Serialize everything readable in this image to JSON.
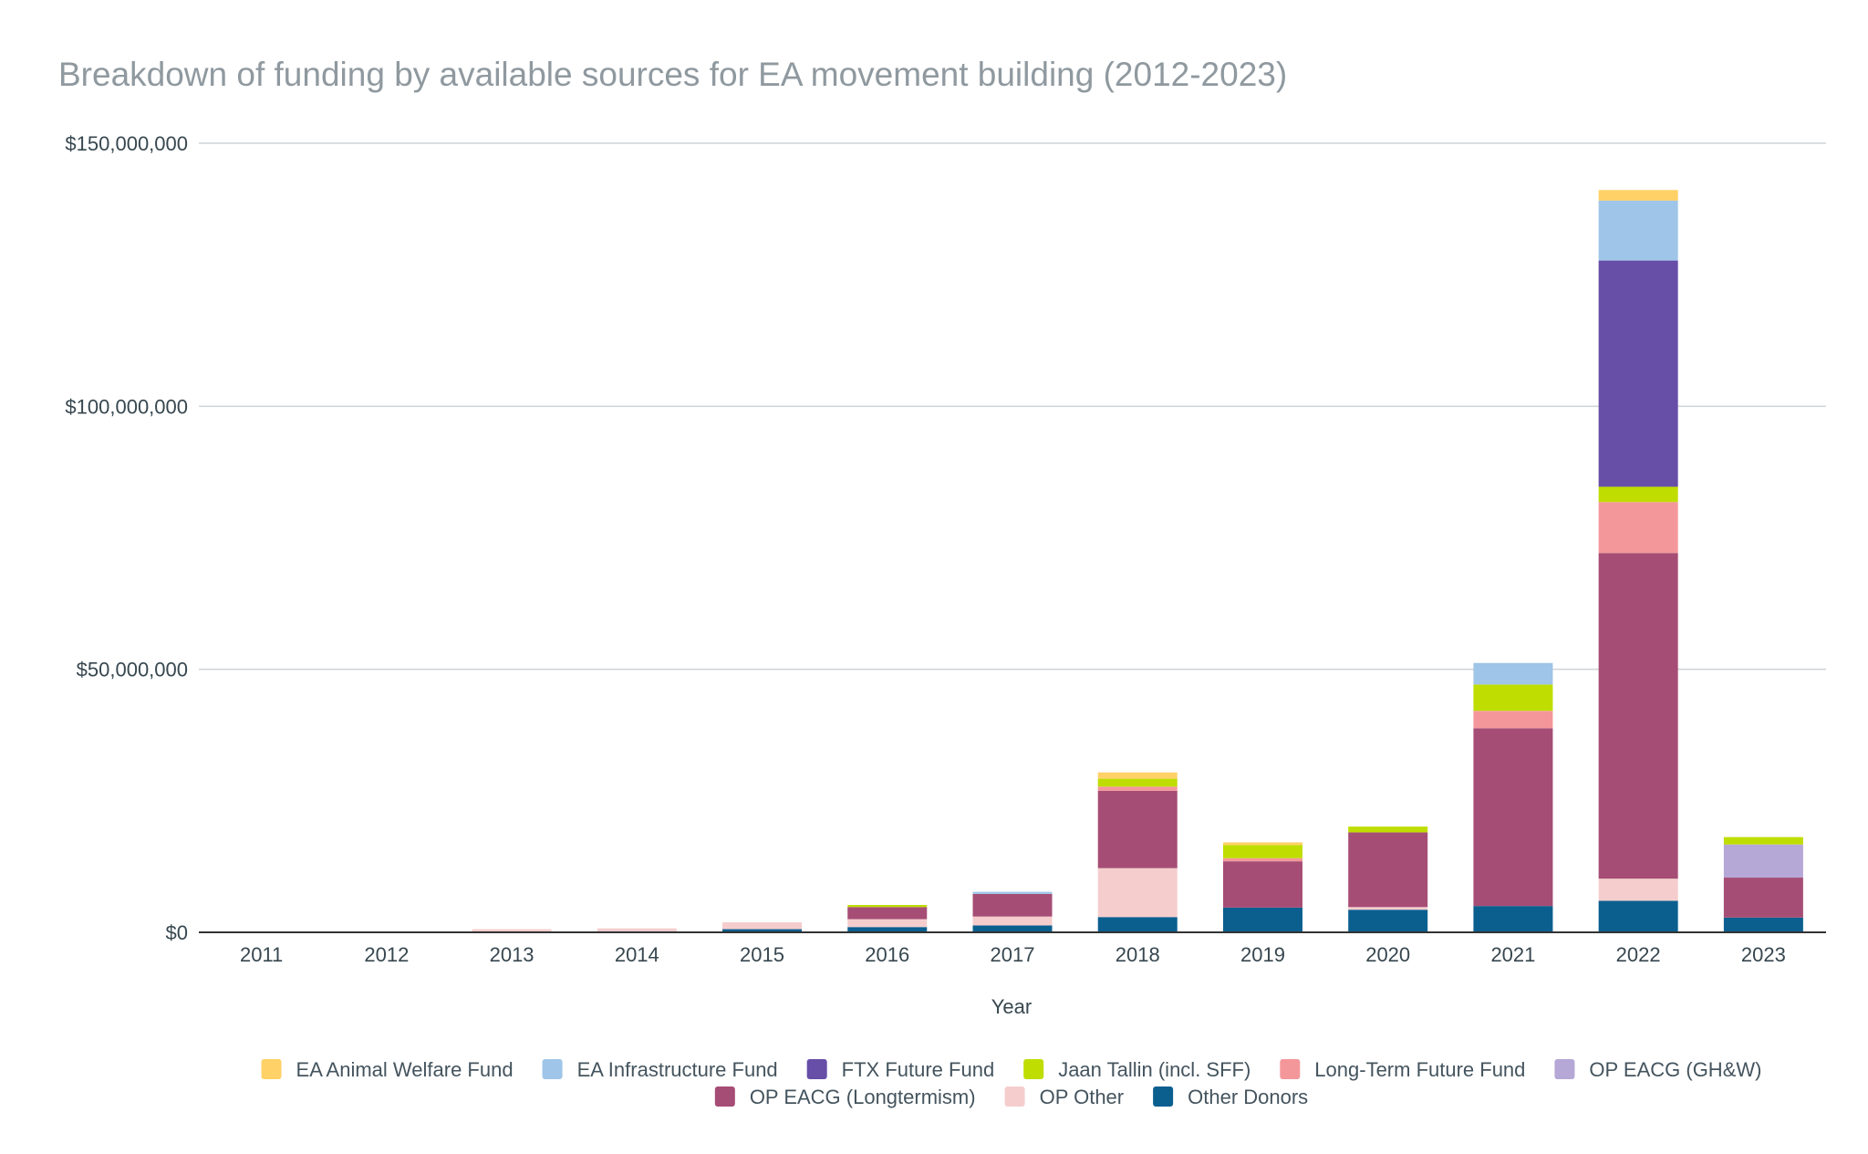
{
  "chart_data": {
    "type": "bar",
    "stacked": true,
    "title": "Breakdown of funding by available sources for EA movement building (2012-2023)",
    "xlabel": "Year",
    "ylabel": "",
    "ylim": [
      0,
      150000000
    ],
    "yticks": [
      0,
      50000000,
      100000000,
      150000000
    ],
    "ytick_labels": [
      "$0",
      "$50,000,000",
      "$100,000,000",
      "$150,000,000"
    ],
    "grid": true,
    "legend_position": "bottom",
    "categories": [
      "2011",
      "2012",
      "2013",
      "2014",
      "2015",
      "2016",
      "2017",
      "2018",
      "2019",
      "2020",
      "2021",
      "2022",
      "2023"
    ],
    "series": [
      {
        "name": "Other Donors",
        "color": "#0b5f8f",
        "values": [
          0,
          0,
          150000,
          200000,
          600000,
          1000000,
          1300000,
          2900000,
          4700000,
          4300000,
          5000000,
          6000000,
          2800000
        ]
      },
      {
        "name": "OP Other",
        "color": "#f5cdcd",
        "values": [
          0,
          0,
          450000,
          550000,
          1300000,
          1500000,
          1700000,
          9300000,
          0,
          500000,
          0,
          4200000,
          0
        ]
      },
      {
        "name": "OP EACG (Longtermism)",
        "color": "#a64d75",
        "values": [
          0,
          0,
          0,
          0,
          0,
          2300000,
          4300000,
          14700000,
          8800000,
          14200000,
          33800000,
          61900000,
          7600000
        ]
      },
      {
        "name": "OP EACG (GH&W)",
        "color": "#b5a7d6",
        "values": [
          0,
          0,
          0,
          0,
          0,
          0,
          0,
          0,
          0,
          0,
          0,
          0,
          6300000
        ]
      },
      {
        "name": "Long-Term Future Fund",
        "color": "#f4979a",
        "values": [
          0,
          0,
          0,
          0,
          0,
          0,
          0,
          800000,
          600000,
          0,
          3300000,
          9700000,
          0
        ]
      },
      {
        "name": "Jaan Tallin (incl. SFF)",
        "color": "#bfdd00",
        "values": [
          0,
          0,
          0,
          0,
          0,
          400000,
          0,
          1500000,
          2500000,
          1100000,
          5000000,
          2900000,
          1400000
        ]
      },
      {
        "name": "FTX Future Fund",
        "color": "#674ea7",
        "values": [
          0,
          0,
          0,
          0,
          0,
          0,
          0,
          0,
          0,
          0,
          0,
          43000000,
          0
        ]
      },
      {
        "name": "EA Infrastructure Fund",
        "color": "#9fc5e8",
        "values": [
          0,
          0,
          0,
          0,
          0,
          0,
          400000,
          0,
          0,
          0,
          4100000,
          11400000,
          0
        ]
      },
      {
        "name": "EA Animal Welfare Fund",
        "color": "#ffd166",
        "values": [
          0,
          0,
          0,
          0,
          0,
          0,
          0,
          1200000,
          500000,
          0,
          0,
          2000000,
          0
        ]
      }
    ],
    "legend_order": [
      "EA Animal Welfare Fund",
      "EA Infrastructure Fund",
      "FTX Future Fund",
      "Jaan Tallin (incl. SFF)",
      "Long-Term Future Fund",
      "OP EACG (GH&W)",
      "OP EACG (Longtermism)",
      "OP Other",
      "Other Donors"
    ]
  }
}
